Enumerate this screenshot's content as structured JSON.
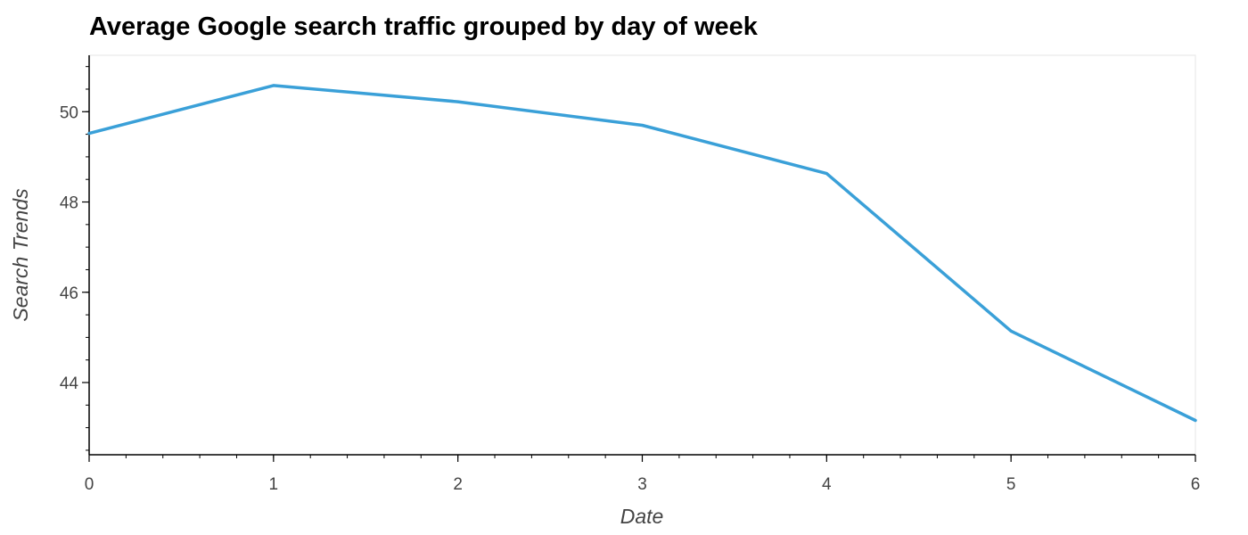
{
  "chart_data": {
    "type": "line",
    "title": "Average Google search traffic grouped by day of week",
    "xlabel": "Date",
    "ylabel": "Search Trends",
    "x": [
      0,
      1,
      2,
      3,
      4,
      5,
      6
    ],
    "series": [
      {
        "values": [
          49.52,
          50.58,
          50.22,
          49.7,
          48.63,
          45.14,
          43.16
        ],
        "color": "#3aa0d8"
      }
    ],
    "xlim": [
      0,
      6
    ],
    "ylim": [
      42.4,
      51.25
    ],
    "x_ticks": [
      0,
      1,
      2,
      3,
      4,
      5,
      6
    ],
    "y_ticks": [
      44,
      46,
      48,
      50
    ],
    "grid": false,
    "legend": "none"
  }
}
